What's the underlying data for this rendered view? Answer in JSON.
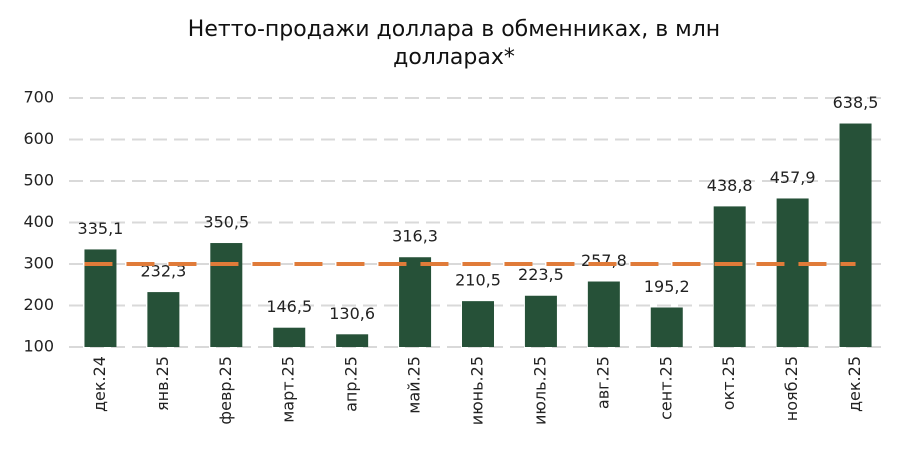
{
  "chart_data": {
    "type": "bar",
    "title": "Нетто-продажи доллара в обменниках, в млн долларах*",
    "categories": [
      "дек.24",
      "янв.25",
      "февр.25",
      "март.25",
      "апр.25",
      "май.25",
      "июнь.25",
      "июль.25",
      "авг.25",
      "сент.25",
      "окт.25",
      "нояб.25",
      "дек.25"
    ],
    "values": [
      335.1,
      232.3,
      350.5,
      146.5,
      130.6,
      316.3,
      210.5,
      223.5,
      257.8,
      195.2,
      438.8,
      457.9,
      638.5
    ],
    "value_labels": [
      "335,1",
      "232,3",
      "350,5",
      "146,5",
      "130,6",
      "316,3",
      "210,5",
      "223,5",
      "257,8",
      "195,2",
      "438,8",
      "457,9",
      "638,5"
    ],
    "color": "#265138",
    "reference_line": {
      "value": 300,
      "color": "#e07b39"
    },
    "ylim": [
      100,
      700
    ],
    "yticks": [
      100,
      200,
      300,
      400,
      500,
      600,
      700
    ],
    "grid": true
  }
}
